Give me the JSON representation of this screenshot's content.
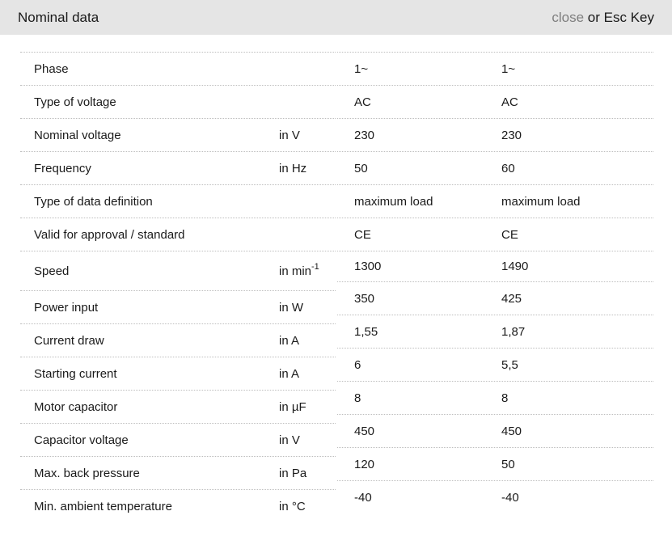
{
  "header": {
    "title": "Nominal data",
    "close_label": "close",
    "close_suffix": " or Esc Key"
  },
  "table": {
    "rows": [
      {
        "label": "Phase",
        "unit": "",
        "unit_sup": "",
        "values": [
          "1~",
          "1~"
        ]
      },
      {
        "label": "Type of voltage",
        "unit": "",
        "unit_sup": "",
        "values": [
          "AC",
          "AC"
        ]
      },
      {
        "label": "Nominal voltage",
        "unit": "in V",
        "unit_sup": "",
        "values": [
          "230",
          "230"
        ]
      },
      {
        "label": "Frequency",
        "unit": "in Hz",
        "unit_sup": "",
        "values": [
          "50",
          "60"
        ]
      },
      {
        "label": "Type of data definition",
        "unit": "",
        "unit_sup": "",
        "values": [
          "maximum load",
          "maximum load"
        ]
      },
      {
        "label": "Valid for approval / standard",
        "unit": "",
        "unit_sup": "",
        "values": [
          "CE",
          "CE"
        ]
      },
      {
        "label": "Speed",
        "unit": "in min",
        "unit_sup": "-1",
        "values": [
          "1300",
          "1490"
        ]
      },
      {
        "label": "Power input",
        "unit": "in W",
        "unit_sup": "",
        "values": [
          "350",
          "425"
        ]
      },
      {
        "label": "Current draw",
        "unit": "in A",
        "unit_sup": "",
        "values": [
          "1,55",
          "1,87"
        ]
      },
      {
        "label": "Starting current",
        "unit": "in A",
        "unit_sup": "",
        "values": [
          "6",
          "5,5"
        ]
      },
      {
        "label": "Motor capacitor",
        "unit": "in µF",
        "unit_sup": "",
        "values": [
          "8",
          "8"
        ]
      },
      {
        "label": "Capacitor voltage",
        "unit": "in V",
        "unit_sup": "",
        "values": [
          "450",
          "450"
        ]
      },
      {
        "label": "Max. back pressure",
        "unit": "in Pa",
        "unit_sup": "",
        "values": [
          "120",
          "50"
        ]
      },
      {
        "label": "Min. ambient temperature",
        "unit": "in °C",
        "unit_sup": "",
        "values": [
          "-40",
          "-40"
        ]
      }
    ]
  }
}
